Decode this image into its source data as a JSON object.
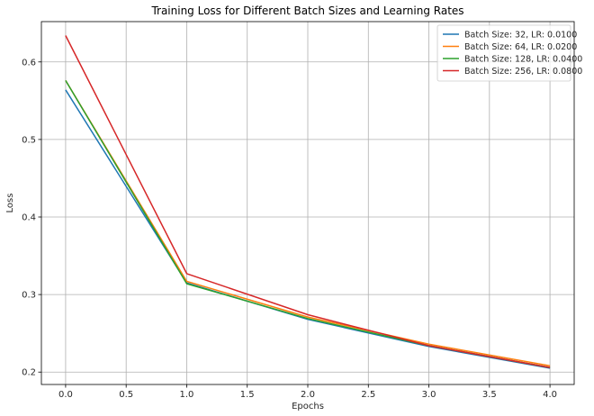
{
  "chart_data": {
    "type": "line",
    "title": "Training Loss for Different Batch Sizes and Learning Rates",
    "xlabel": "Epochs",
    "ylabel": "Loss",
    "x": [
      0,
      1,
      2,
      3,
      4
    ],
    "xticks": [
      "0.0",
      "0.5",
      "1.0",
      "1.5",
      "2.0",
      "2.5",
      "3.0",
      "3.5",
      "4.0"
    ],
    "yticks": [
      "0.2",
      "0.3",
      "0.4",
      "0.5",
      "0.6"
    ],
    "xlim": [
      -0.2,
      4.2
    ],
    "ylim": [
      0.184,
      0.652
    ],
    "grid": true,
    "legend_position": "top-right",
    "series": [
      {
        "name": "Batch Size: 32, LR: 0.0100",
        "color": "#1f77b4",
        "values": [
          0.564,
          0.315,
          0.268,
          0.233,
          0.205
        ]
      },
      {
        "name": "Batch Size: 64, LR: 0.0200",
        "color": "#ff7f0e",
        "values": [
          0.576,
          0.317,
          0.271,
          0.236,
          0.208
        ]
      },
      {
        "name": "Batch Size: 128, LR: 0.0400",
        "color": "#2ca02c",
        "values": [
          0.576,
          0.314,
          0.269,
          0.234,
          0.206
        ]
      },
      {
        "name": "Batch Size: 256, LR: 0.0800",
        "color": "#d62728",
        "values": [
          0.634,
          0.327,
          0.274,
          0.234,
          0.206
        ]
      }
    ]
  }
}
